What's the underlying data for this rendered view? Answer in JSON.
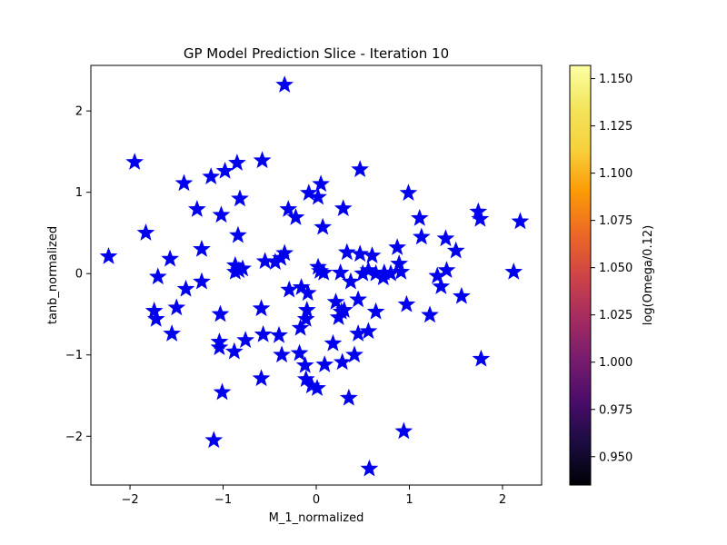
{
  "chart_data": {
    "type": "scatter",
    "title": "GP Model Prediction Slice - Iteration 10",
    "xlabel": "M_1_normalized",
    "ylabel": "tanb_normalized",
    "xlim": [
      -2.42,
      2.42
    ],
    "ylim": [
      -2.6,
      2.56
    ],
    "xticks": [
      -2,
      -1,
      0,
      1,
      2
    ],
    "xtick_labels": [
      "−2",
      "−1",
      "0",
      "1",
      "2"
    ],
    "yticks": [
      -2,
      -1,
      0,
      1,
      2
    ],
    "ytick_labels": [
      "−2",
      "−1",
      "0",
      "1",
      "2"
    ],
    "marker": "star",
    "point_color": "#0000ee",
    "grid": false,
    "colorbar": {
      "label": "log(Omega/0.12)",
      "colormap": "inferno",
      "range": [
        0.935,
        1.157
      ],
      "ticks": [
        0.95,
        0.975,
        1.0,
        1.025,
        1.05,
        1.075,
        1.1,
        1.125,
        1.15
      ],
      "tick_labels": [
        "0.950",
        "0.975",
        "1.000",
        "1.025",
        "1.050",
        "1.075",
        "1.100",
        "1.125",
        "1.150"
      ]
    },
    "points": [
      [
        -0.34,
        2.32
      ],
      [
        -1.95,
        1.37
      ],
      [
        -0.58,
        1.39
      ],
      [
        -0.85,
        1.36
      ],
      [
        -0.98,
        1.26
      ],
      [
        -1.13,
        1.19
      ],
      [
        0.47,
        1.28
      ],
      [
        -1.42,
        1.11
      ],
      [
        0.05,
        1.1
      ],
      [
        -0.08,
        0.99
      ],
      [
        0.02,
        0.94
      ],
      [
        0.99,
        0.99
      ],
      [
        -0.82,
        0.92
      ],
      [
        -1.28,
        0.79
      ],
      [
        -0.3,
        0.79
      ],
      [
        0.29,
        0.8
      ],
      [
        -0.22,
        0.69
      ],
      [
        -1.02,
        0.72
      ],
      [
        1.11,
        0.68
      ],
      [
        1.74,
        0.76
      ],
      [
        1.76,
        0.67
      ],
      [
        2.19,
        0.64
      ],
      [
        0.07,
        0.57
      ],
      [
        -1.83,
        0.5
      ],
      [
        -0.84,
        0.47
      ],
      [
        1.13,
        0.45
      ],
      [
        1.39,
        0.43
      ],
      [
        -1.23,
        0.3
      ],
      [
        0.87,
        0.32
      ],
      [
        1.5,
        0.28
      ],
      [
        -2.23,
        0.21
      ],
      [
        -0.34,
        0.25
      ],
      [
        0.33,
        0.26
      ],
      [
        0.47,
        0.24
      ],
      [
        0.6,
        0.22
      ],
      [
        -1.57,
        0.18
      ],
      [
        -0.55,
        0.15
      ],
      [
        -0.44,
        0.14
      ],
      [
        -0.38,
        0.19
      ],
      [
        0.89,
        0.12
      ],
      [
        -0.87,
        0.1
      ],
      [
        -0.83,
        0.04
      ],
      [
        -0.79,
        0.06
      ],
      [
        -0.87,
        0.02
      ],
      [
        0.02,
        0.08
      ],
      [
        0.04,
        0.03
      ],
      [
        0.08,
        0.01
      ],
      [
        0.26,
        0.01
      ],
      [
        0.5,
        0.0
      ],
      [
        0.56,
        0.04
      ],
      [
        0.64,
        0.0
      ],
      [
        0.73,
        0.01
      ],
      [
        0.8,
        0.0
      ],
      [
        0.91,
        0.02
      ],
      [
        2.12,
        0.02
      ],
      [
        1.4,
        0.04
      ],
      [
        -1.7,
        -0.04
      ],
      [
        1.3,
        -0.03
      ],
      [
        0.72,
        -0.05
      ],
      [
        0.37,
        -0.1
      ],
      [
        -1.23,
        -0.1
      ],
      [
        -1.4,
        -0.19
      ],
      [
        -0.29,
        -0.2
      ],
      [
        -0.16,
        -0.17
      ],
      [
        -0.09,
        -0.24
      ],
      [
        1.34,
        -0.16
      ],
      [
        1.56,
        -0.28
      ],
      [
        0.45,
        -0.32
      ],
      [
        0.21,
        -0.35
      ],
      [
        -1.5,
        -0.42
      ],
      [
        -0.59,
        -0.43
      ],
      [
        -1.74,
        -0.46
      ],
      [
        -0.1,
        -0.45
      ],
      [
        0.27,
        -0.47
      ],
      [
        0.3,
        -0.45
      ],
      [
        0.97,
        -0.38
      ],
      [
        0.64,
        -0.47
      ],
      [
        -1.03,
        -0.5
      ],
      [
        1.22,
        -0.51
      ],
      [
        0.24,
        -0.54
      ],
      [
        -1.72,
        -0.56
      ],
      [
        -0.11,
        -0.56
      ],
      [
        -0.17,
        -0.67
      ],
      [
        0.56,
        -0.71
      ],
      [
        0.45,
        -0.74
      ],
      [
        -1.55,
        -0.74
      ],
      [
        -0.57,
        -0.75
      ],
      [
        -0.4,
        -0.76
      ],
      [
        -0.76,
        -0.82
      ],
      [
        0.18,
        -0.86
      ],
      [
        -1.04,
        -0.84
      ],
      [
        -1.04,
        -0.91
      ],
      [
        -0.88,
        -0.96
      ],
      [
        -0.37,
        -1.0
      ],
      [
        -0.18,
        -0.98
      ],
      [
        0.41,
        -1.0
      ],
      [
        1.77,
        -1.05
      ],
      [
        0.28,
        -1.09
      ],
      [
        0.09,
        -1.12
      ],
      [
        -0.12,
        -1.13
      ],
      [
        -0.11,
        -1.3
      ],
      [
        -0.59,
        -1.29
      ],
      [
        -0.05,
        -1.38
      ],
      [
        0.01,
        -1.41
      ],
      [
        -1.01,
        -1.46
      ],
      [
        0.35,
        -1.53
      ],
      [
        0.94,
        -1.94
      ],
      [
        -1.1,
        -2.05
      ],
      [
        0.57,
        -2.4
      ]
    ]
  }
}
